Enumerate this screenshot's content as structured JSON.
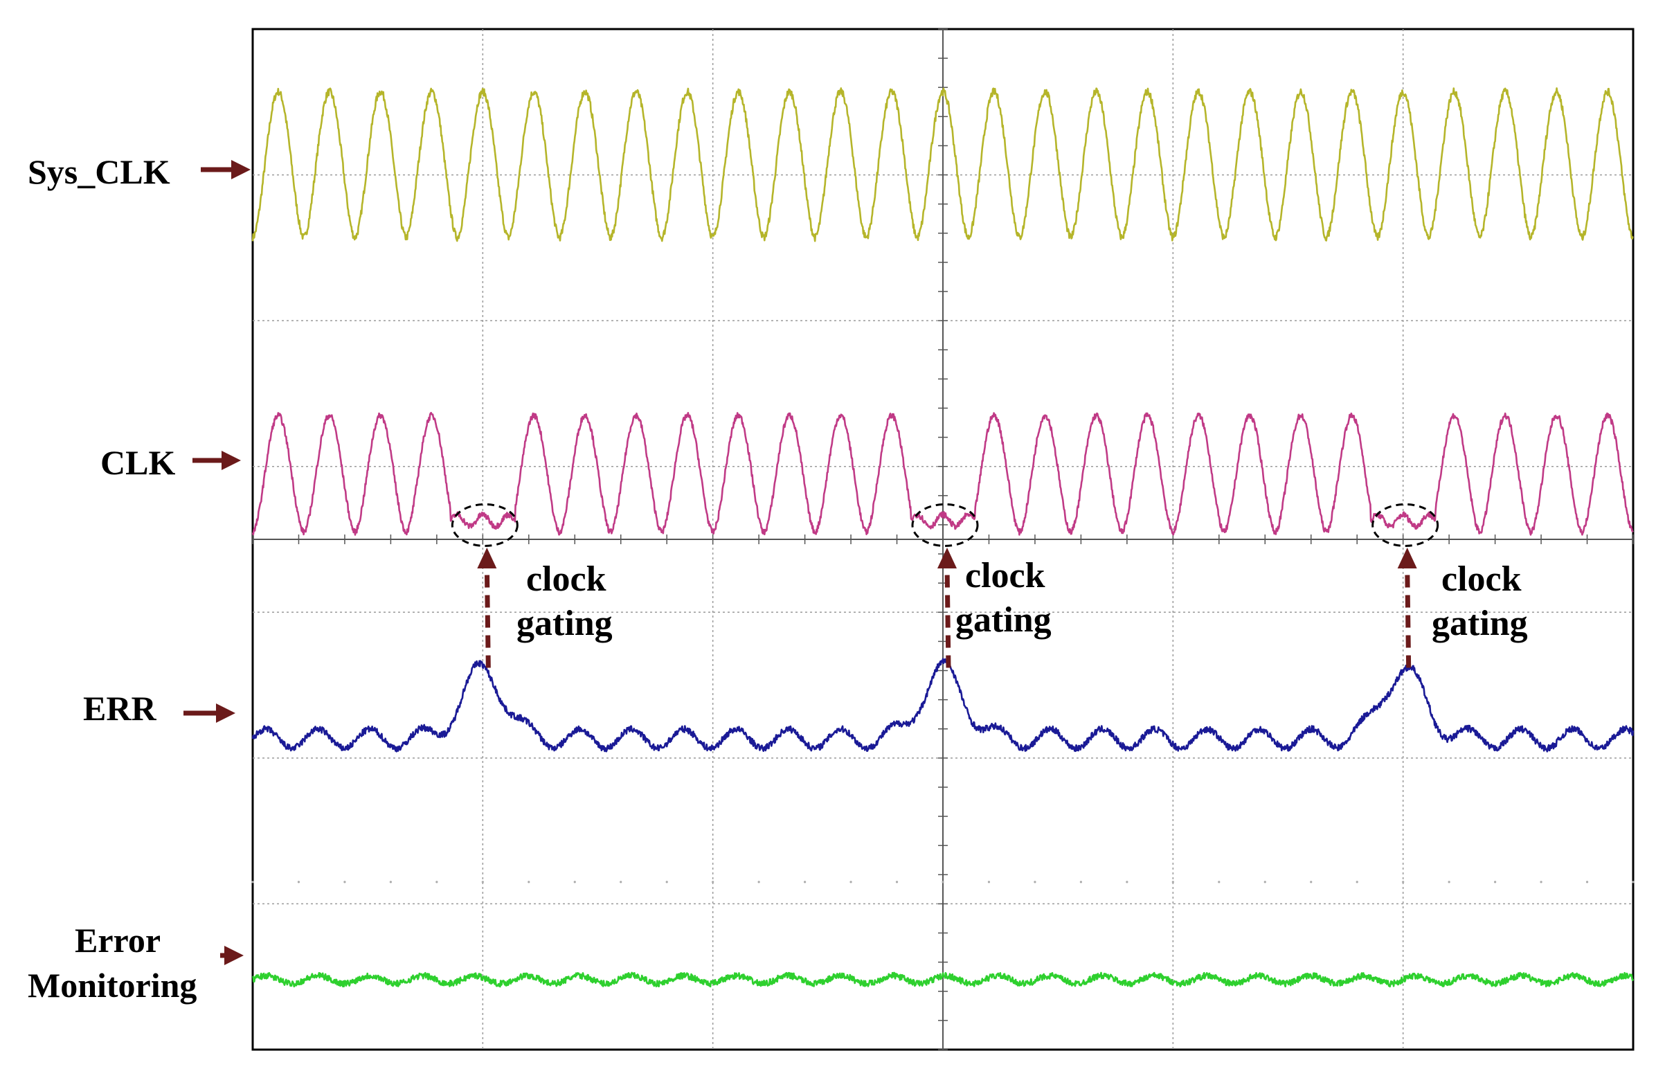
{
  "chart_data": {
    "type": "line",
    "title": "",
    "xlabel": "",
    "ylabel": "",
    "grid": true,
    "x_divisions": 6,
    "y_divisions": 7,
    "x_range": [
      0,
      6
    ],
    "gating_events_x": [
      1.0,
      3.0,
      5.0
    ],
    "series": [
      {
        "name": "Sys_CLK",
        "color": "#b5b52a",
        "kind": "clock",
        "cycles": 27,
        "low": 0.0,
        "high": 1.0,
        "baseline_div": 1.43,
        "amplitude_div": 1.0
      },
      {
        "name": "CLK",
        "color": "#c03a86",
        "kind": "gated_clock",
        "cycles": 27,
        "low": 0.0,
        "high": 1.0,
        "gated_at_x": [
          1.0,
          3.0,
          5.0
        ],
        "baseline_div": 3.45,
        "amplitude_div": 0.8
      },
      {
        "name": "ERR",
        "color": "#1a1a96",
        "kind": "error_pulse",
        "idle_level": 0.0,
        "pulse_level": 1.0,
        "pulse_at_x": [
          1.0,
          3.0,
          5.0
        ],
        "baseline_div": 4.95,
        "amplitude_div": 0.55
      },
      {
        "name": "Error Monitoring",
        "color": "#2ed02e",
        "kind": "flat",
        "level": 0.0,
        "baseline_div": 6.55,
        "amplitude_div": 0.06
      }
    ],
    "annotations": [
      {
        "line1": "clock",
        "line2": "gating",
        "x": 1.0
      },
      {
        "line1": "clock",
        "line2": "gating",
        "x": 3.0
      },
      {
        "line1": "clock",
        "line2": "gating",
        "x": 5.0
      }
    ]
  },
  "labels": {
    "sys_clk": "Sys_CLK",
    "clk": "CLK",
    "err": "ERR",
    "error_monitoring_1": "Error",
    "error_monitoring_2": "Monitoring"
  },
  "colors": {
    "arrow": "#6b1a1a",
    "grid": "#9a9a9a",
    "frame": "#000000"
  }
}
